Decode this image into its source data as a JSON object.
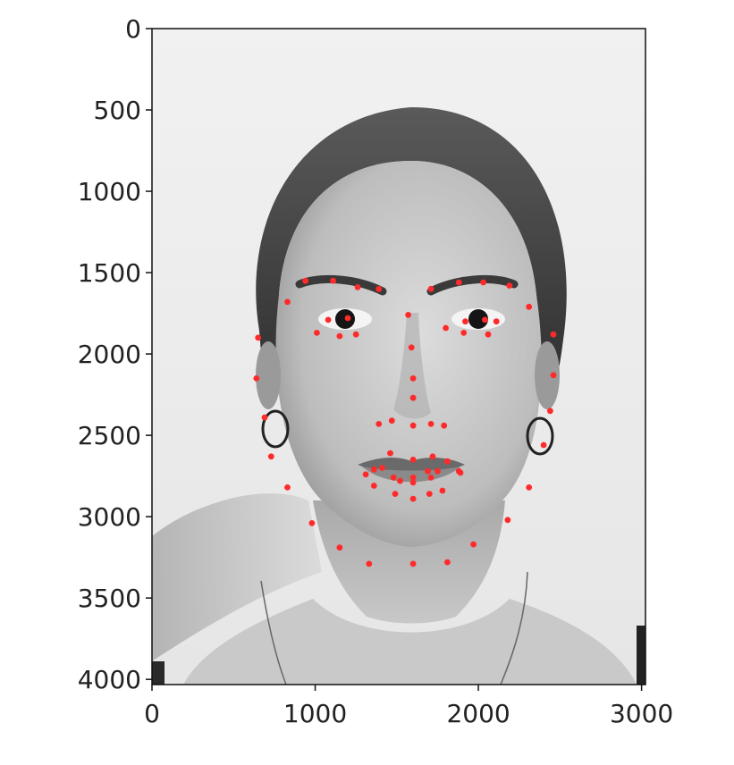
{
  "chart_data": {
    "type": "scatter",
    "title": "",
    "xlabel": "",
    "ylabel": "",
    "background": "grayscale portrait photograph of a woman's face",
    "xlim": [
      0,
      3024
    ],
    "ylim": [
      4032,
      0
    ],
    "xticks": [
      0,
      1000,
      2000,
      3000
    ],
    "yticks": [
      0,
      500,
      1000,
      1500,
      2000,
      2500,
      3000,
      3500,
      4000
    ],
    "grid": false,
    "legend": "none",
    "marker_color": "#ff2a2a",
    "series": [
      {
        "points": [
          [
            650,
            1900
          ],
          [
            640,
            2150
          ],
          [
            690,
            2390
          ],
          [
            730,
            2630
          ],
          [
            830,
            2820
          ],
          [
            980,
            3040
          ],
          [
            1150,
            3190
          ],
          [
            1330,
            3290
          ],
          [
            1600,
            3290
          ],
          [
            1810,
            3280
          ],
          [
            1970,
            3170
          ],
          [
            2180,
            3020
          ],
          [
            2310,
            2820
          ],
          [
            2400,
            2560
          ],
          [
            2440,
            2350
          ],
          [
            2460,
            2130
          ],
          [
            2460,
            1880
          ],
          [
            830,
            1680
          ],
          [
            940,
            1550
          ],
          [
            1110,
            1550
          ],
          [
            1260,
            1590
          ],
          [
            1390,
            1600
          ],
          [
            1710,
            1600
          ],
          [
            1880,
            1560
          ],
          [
            2030,
            1560
          ],
          [
            2190,
            1580
          ],
          [
            2310,
            1710
          ],
          [
            1570,
            1760
          ],
          [
            1590,
            1960
          ],
          [
            1600,
            2150
          ],
          [
            1600,
            2270
          ],
          [
            1390,
            2430
          ],
          [
            1470,
            2410
          ],
          [
            1600,
            2440
          ],
          [
            1710,
            2430
          ],
          [
            1790,
            2440
          ],
          [
            1080,
            1790
          ],
          [
            1200,
            1780
          ],
          [
            1250,
            1880
          ],
          [
            1150,
            1890
          ],
          [
            1010,
            1870
          ],
          [
            1800,
            1840
          ],
          [
            1920,
            1800
          ],
          [
            2040,
            1790
          ],
          [
            2110,
            1800
          ],
          [
            2060,
            1880
          ],
          [
            1910,
            1870
          ],
          [
            1310,
            2740
          ],
          [
            1360,
            2710
          ],
          [
            1460,
            2610
          ],
          [
            1600,
            2650
          ],
          [
            1720,
            2630
          ],
          [
            1810,
            2660
          ],
          [
            1890,
            2730
          ],
          [
            1780,
            2840
          ],
          [
            1700,
            2860
          ],
          [
            1600,
            2890
          ],
          [
            1490,
            2860
          ],
          [
            1360,
            2810
          ],
          [
            1410,
            2700
          ],
          [
            1480,
            2760
          ],
          [
            1600,
            2760
          ],
          [
            1690,
            2720
          ],
          [
            1750,
            2720
          ],
          [
            1880,
            2720
          ],
          [
            1520,
            2780
          ],
          [
            1600,
            2790
          ],
          [
            1710,
            2760
          ]
        ]
      }
    ]
  }
}
